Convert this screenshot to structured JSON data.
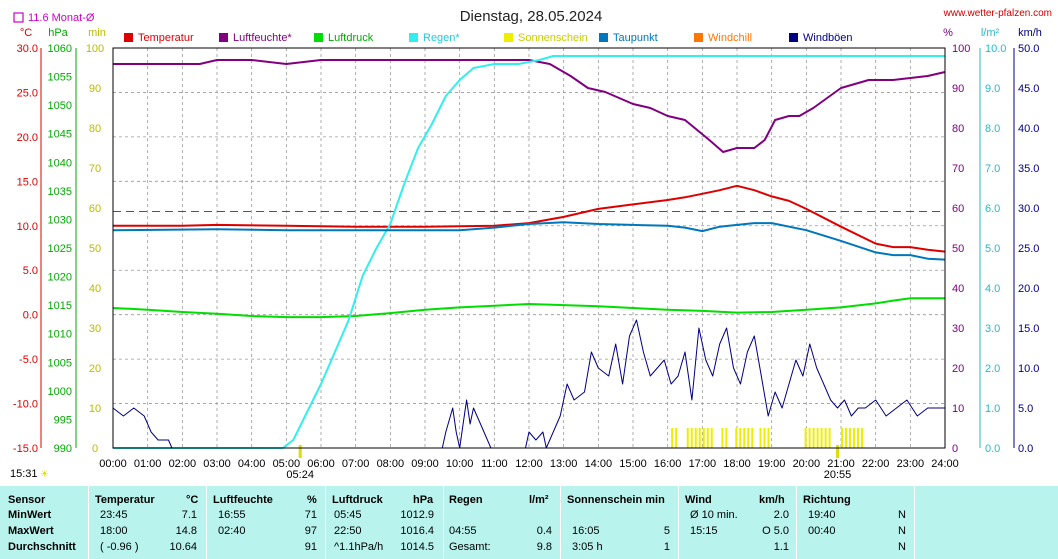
{
  "header": {
    "title": "Dienstag, 28.05.2024",
    "website": "www.wetter-pfalzen.com",
    "month_avg_label": "11.6 Monat-Ø",
    "sunrise": "05:24",
    "sunset": "20:55",
    "current_time": "15:31"
  },
  "units": {
    "temp": "°C",
    "pressure": "hPa",
    "sun": "min",
    "humidity": "%",
    "rain": "l/m²",
    "wind": "km/h"
  },
  "colors": {
    "temperature": "#dd0000",
    "humidity": "#800080",
    "pressure": "#00dd00",
    "rain": "#33eeee",
    "sunshine": "#eeee00",
    "dewpoint": "#0077bb",
    "windchill": "#ff7700",
    "gust": "#000080",
    "month_avg": "#cc00cc",
    "stats_bg": "#b9f3ee"
  },
  "chart_data": {
    "type": "line",
    "title": "Dienstag, 28.05.2024",
    "x_ticks": [
      "00:00",
      "01:00",
      "02:00",
      "03:00",
      "04:00",
      "05:00",
      "06:00",
      "07:00",
      "08:00",
      "09:00",
      "10:00",
      "11:00",
      "12:00",
      "13:00",
      "14:00",
      "15:00",
      "16:00",
      "17:00",
      "18:00",
      "19:00",
      "20:00",
      "21:00",
      "22:00",
      "23:00",
      "24:00"
    ],
    "x_range_hours": [
      0,
      24
    ],
    "grid": true,
    "axes": {
      "temp": {
        "label": "°C",
        "min": -15,
        "max": 30,
        "ticks": [
          "30.0",
          "25.0",
          "20.0",
          "15.0",
          "10.0",
          "5.0",
          "0.0",
          "-5.0",
          "-10.0",
          "-15.0"
        ]
      },
      "pressure": {
        "label": "hPa",
        "min": 990,
        "max": 1060,
        "ticks": [
          "1060",
          "1055",
          "1050",
          "1045",
          "1040",
          "1035",
          "1030",
          "1025",
          "1020",
          "1015",
          "1010",
          "1005",
          "1000",
          "995",
          "990"
        ]
      },
      "sun": {
        "label": "min",
        "min": 0,
        "max": 100,
        "ticks": [
          "100",
          "90",
          "80",
          "70",
          "60",
          "50",
          "40",
          "30",
          "20",
          "10",
          "0"
        ]
      },
      "humidity": {
        "label": "%",
        "min": 0,
        "max": 100,
        "ticks": [
          "100",
          "90",
          "80",
          "70",
          "60",
          "50",
          "40",
          "30",
          "20",
          "10",
          "0"
        ]
      },
      "rain": {
        "label": "l/m²",
        "min": 0,
        "max": 10,
        "ticks": [
          "10.0",
          "9.0",
          "8.0",
          "7.0",
          "6.0",
          "5.0",
          "4.0",
          "3.0",
          "2.0",
          "1.0",
          "0.0"
        ]
      },
      "wind": {
        "label": "km/h",
        "min": 0,
        "max": 50,
        "ticks": [
          "50.0",
          "45.0",
          "40.0",
          "35.0",
          "30.0",
          "25.0",
          "20.0",
          "15.0",
          "10.0",
          "5.0",
          "0.0"
        ]
      }
    },
    "legend": [
      "Temperatur",
      "Luftfeuchte*",
      "Luftdruck",
      "Regen*",
      "Sonnenschein",
      "Taupunkt",
      "Windchill",
      "Windböen"
    ],
    "legend_placement": "top",
    "month_avg_temp": 11.6,
    "series": [
      {
        "name": "Temperatur",
        "axis": "temp",
        "color": "#dd0000",
        "points": [
          [
            0,
            10.0
          ],
          [
            2,
            10.0
          ],
          [
            3,
            10.1
          ],
          [
            5,
            10.0
          ],
          [
            7,
            9.9
          ],
          [
            9,
            9.9
          ],
          [
            11,
            10.0
          ],
          [
            12,
            10.3
          ],
          [
            13,
            11.0
          ],
          [
            14,
            11.9
          ],
          [
            15,
            12.4
          ],
          [
            16,
            12.9
          ],
          [
            16.5,
            13.2
          ],
          [
            17,
            13.6
          ],
          [
            17.5,
            14.0
          ],
          [
            18,
            14.5
          ],
          [
            18.5,
            14.0
          ],
          [
            19,
            13.3
          ],
          [
            19.5,
            12.8
          ],
          [
            20,
            11.9
          ],
          [
            21,
            9.9
          ],
          [
            22,
            8.0
          ],
          [
            22.5,
            7.6
          ],
          [
            23,
            7.6
          ],
          [
            23.5,
            7.3
          ],
          [
            24,
            7.1
          ]
        ]
      },
      {
        "name": "Luftfeuchte*",
        "axis": "humidity",
        "color": "#800080",
        "points": [
          [
            0,
            96
          ],
          [
            2.5,
            96
          ],
          [
            3,
            97
          ],
          [
            4,
            97
          ],
          [
            5,
            96
          ],
          [
            6,
            97
          ],
          [
            11,
            97
          ],
          [
            12,
            97
          ],
          [
            12.6,
            96
          ],
          [
            13.2,
            93
          ],
          [
            13.7,
            90
          ],
          [
            14.2,
            89
          ],
          [
            15,
            86
          ],
          [
            15.5,
            85
          ],
          [
            16,
            83
          ],
          [
            16.5,
            82
          ],
          [
            17.2,
            77
          ],
          [
            17.6,
            74
          ],
          [
            18,
            75
          ],
          [
            18.5,
            75
          ],
          [
            18.8,
            77
          ],
          [
            19.1,
            82
          ],
          [
            19.5,
            83
          ],
          [
            19.8,
            83
          ],
          [
            20.2,
            85
          ],
          [
            21,
            90
          ],
          [
            21.8,
            92
          ],
          [
            22.5,
            92
          ],
          [
            23.5,
            93
          ],
          [
            24,
            94
          ]
        ]
      },
      {
        "name": "Luftdruck",
        "axis": "pressure",
        "color": "#00dd00",
        "points": [
          [
            0,
            1014.5
          ],
          [
            1,
            1014.2
          ],
          [
            2,
            1013.8
          ],
          [
            3,
            1013.5
          ],
          [
            4,
            1013.1
          ],
          [
            5,
            1012.9
          ],
          [
            6,
            1012.9
          ],
          [
            7,
            1013.1
          ],
          [
            8,
            1013.6
          ],
          [
            9,
            1014.2
          ],
          [
            10,
            1014.6
          ],
          [
            11,
            1014.9
          ],
          [
            12,
            1015.2
          ],
          [
            13,
            1015.0
          ],
          [
            14,
            1014.8
          ],
          [
            15,
            1014.5
          ],
          [
            16,
            1014.2
          ],
          [
            17,
            1014.0
          ],
          [
            18,
            1013.7
          ],
          [
            19,
            1013.8
          ],
          [
            20,
            1014.2
          ],
          [
            21,
            1014.6
          ],
          [
            22,
            1015.3
          ],
          [
            22.5,
            1015.8
          ],
          [
            23,
            1016.2
          ],
          [
            24,
            1016.2
          ]
        ]
      },
      {
        "name": "Regen*",
        "axis": "rain",
        "color": "#33eeee",
        "points": [
          [
            0,
            0
          ],
          [
            4.9,
            0
          ],
          [
            5.2,
            0.2
          ],
          [
            5.6,
            0.9
          ],
          [
            6.0,
            1.6
          ],
          [
            6.4,
            2.4
          ],
          [
            6.8,
            3.2
          ],
          [
            7.2,
            4.3
          ],
          [
            7.6,
            5.0
          ],
          [
            8.0,
            5.6
          ],
          [
            8.4,
            6.6
          ],
          [
            8.8,
            7.5
          ],
          [
            9.2,
            8.1
          ],
          [
            9.6,
            8.8
          ],
          [
            10.0,
            9.2
          ],
          [
            10.4,
            9.5
          ],
          [
            11.0,
            9.6
          ],
          [
            11.7,
            9.6
          ],
          [
            12.3,
            9.7
          ],
          [
            12.7,
            9.8
          ],
          [
            24,
            9.8
          ]
        ]
      },
      {
        "name": "Taupunkt",
        "axis": "temp",
        "color": "#0077bb",
        "points": [
          [
            0,
            9.5
          ],
          [
            3,
            9.6
          ],
          [
            5,
            9.5
          ],
          [
            8,
            9.5
          ],
          [
            10,
            9.5
          ],
          [
            11,
            9.8
          ],
          [
            12,
            10.2
          ],
          [
            13,
            10.4
          ],
          [
            14,
            10.2
          ],
          [
            15,
            10.1
          ],
          [
            16,
            10.0
          ],
          [
            16.5,
            9.8
          ],
          [
            17,
            9.4
          ],
          [
            17.5,
            9.9
          ],
          [
            18,
            10.1
          ],
          [
            18.5,
            10.3
          ],
          [
            19,
            10.3
          ],
          [
            20,
            9.5
          ],
          [
            21,
            8.3
          ],
          [
            22,
            7.0
          ],
          [
            22.5,
            6.7
          ],
          [
            23,
            6.7
          ],
          [
            23.5,
            6.3
          ],
          [
            24,
            6.2
          ]
        ]
      },
      {
        "name": "Windböen",
        "axis": "wind",
        "color": "#000080",
        "points": [
          [
            0,
            5
          ],
          [
            0.3,
            4
          ],
          [
            0.6,
            5
          ],
          [
            0.9,
            4
          ],
          [
            1.1,
            2
          ],
          [
            1.3,
            1
          ],
          [
            1.6,
            1
          ],
          [
            1.7,
            0
          ],
          [
            9.5,
            0
          ],
          [
            9.6,
            2
          ],
          [
            9.8,
            5
          ],
          [
            9.9,
            2
          ],
          [
            10.0,
            0
          ],
          [
            10.1,
            3
          ],
          [
            10.2,
            6
          ],
          [
            10.3,
            3
          ],
          [
            10.4,
            5
          ],
          [
            10.6,
            3
          ],
          [
            10.9,
            0
          ],
          [
            11.7,
            0
          ],
          [
            11.9,
            0
          ],
          [
            12.0,
            2
          ],
          [
            12.2,
            1
          ],
          [
            12.4,
            2
          ],
          [
            12.5,
            0
          ],
          [
            12.9,
            4
          ],
          [
            13.1,
            8
          ],
          [
            13.3,
            6
          ],
          [
            13.6,
            7
          ],
          [
            13.8,
            12
          ],
          [
            14.0,
            10
          ],
          [
            14.3,
            9
          ],
          [
            14.5,
            13
          ],
          [
            14.7,
            8
          ],
          [
            14.9,
            14
          ],
          [
            15.1,
            16
          ],
          [
            15.3,
            12
          ],
          [
            15.5,
            9
          ],
          [
            15.7,
            10
          ],
          [
            15.9,
            11
          ],
          [
            16.1,
            8
          ],
          [
            16.3,
            9
          ],
          [
            16.5,
            12
          ],
          [
            16.7,
            6
          ],
          [
            16.9,
            15
          ],
          [
            17.1,
            11
          ],
          [
            17.3,
            9
          ],
          [
            17.5,
            13
          ],
          [
            17.7,
            15
          ],
          [
            17.9,
            10
          ],
          [
            18.1,
            8
          ],
          [
            18.3,
            12
          ],
          [
            18.5,
            14
          ],
          [
            18.7,
            9
          ],
          [
            18.9,
            4
          ],
          [
            19.1,
            7
          ],
          [
            19.3,
            5
          ],
          [
            19.5,
            8
          ],
          [
            19.7,
            11
          ],
          [
            19.9,
            9
          ],
          [
            20.1,
            13
          ],
          [
            20.3,
            10
          ],
          [
            20.5,
            8
          ],
          [
            20.7,
            6
          ],
          [
            20.9,
            5
          ],
          [
            21.1,
            6
          ],
          [
            21.3,
            4
          ],
          [
            21.5,
            5
          ],
          [
            21.7,
            5
          ],
          [
            22.0,
            6
          ],
          [
            22.3,
            4
          ],
          [
            22.6,
            5
          ],
          [
            22.9,
            6
          ],
          [
            23.2,
            4
          ],
          [
            23.5,
            5
          ],
          [
            23.8,
            5
          ],
          [
            24,
            5
          ]
        ]
      }
    ],
    "sunshine_bars": [
      [
        16.1,
        16.3
      ],
      [
        16.55,
        17.35
      ],
      [
        17.55,
        17.75
      ],
      [
        17.95,
        18.45
      ],
      [
        18.65,
        18.95
      ],
      [
        19.95,
        20.7
      ],
      [
        21.0,
        21.6
      ]
    ],
    "markers": {
      "sunrise_hour": 5.4,
      "sunset_hour": 20.9
    }
  },
  "stats": {
    "headers": [
      {
        "name": "Sensor",
        "unit": ""
      },
      {
        "name": "Temperatur",
        "unit": "°C"
      },
      {
        "name": "Luftfeuchte",
        "unit": "%"
      },
      {
        "name": "Luftdruck",
        "unit": "hPa"
      },
      {
        "name": "Regen",
        "unit": "l/m²"
      },
      {
        "name": "Sonnenschein min",
        "unit": ""
      },
      {
        "name": "Wind",
        "unit": "km/h"
      },
      {
        "name": "Richtung",
        "unit": ""
      }
    ],
    "rows": [
      {
        "label": "MinWert",
        "temp_time": "23:45",
        "temp_val": "7.1",
        "hum_time": "16:55",
        "hum_val": "71",
        "press_time": "05:45",
        "press_val": "1012.9",
        "rain_time": "",
        "rain_val": "",
        "sun_time": "",
        "sun_val": "",
        "wind_time": "Ø 10 min.",
        "wind_val": "2.0",
        "dir_time": "19:40",
        "dir_val": "N"
      },
      {
        "label": "MaxWert",
        "temp_time": "18:00",
        "temp_val": "14.8",
        "hum_time": "02:40",
        "hum_val": "97",
        "press_time": "22:50",
        "press_val": "1016.4",
        "rain_time": "04:55",
        "rain_val": "0.4",
        "sun_time": "16:05",
        "sun_val": "5",
        "wind_time": "15:15",
        "wind_val": "O 5.0",
        "dir_time": "00:40",
        "dir_val": "N"
      },
      {
        "label": "Durchschnitt",
        "temp_time": "( -0.96 )",
        "temp_val": "10.64",
        "hum_time": "",
        "hum_val": "91",
        "press_time": "^1.1hPa/h",
        "press_val": "1014.5",
        "rain_time": "Gesamt:",
        "rain_val": "9.8",
        "sun_time": "3:05 h",
        "sun_val": "1",
        "wind_time": "",
        "wind_val": "1.1",
        "dir_time": "",
        "dir_val": "N"
      }
    ]
  }
}
